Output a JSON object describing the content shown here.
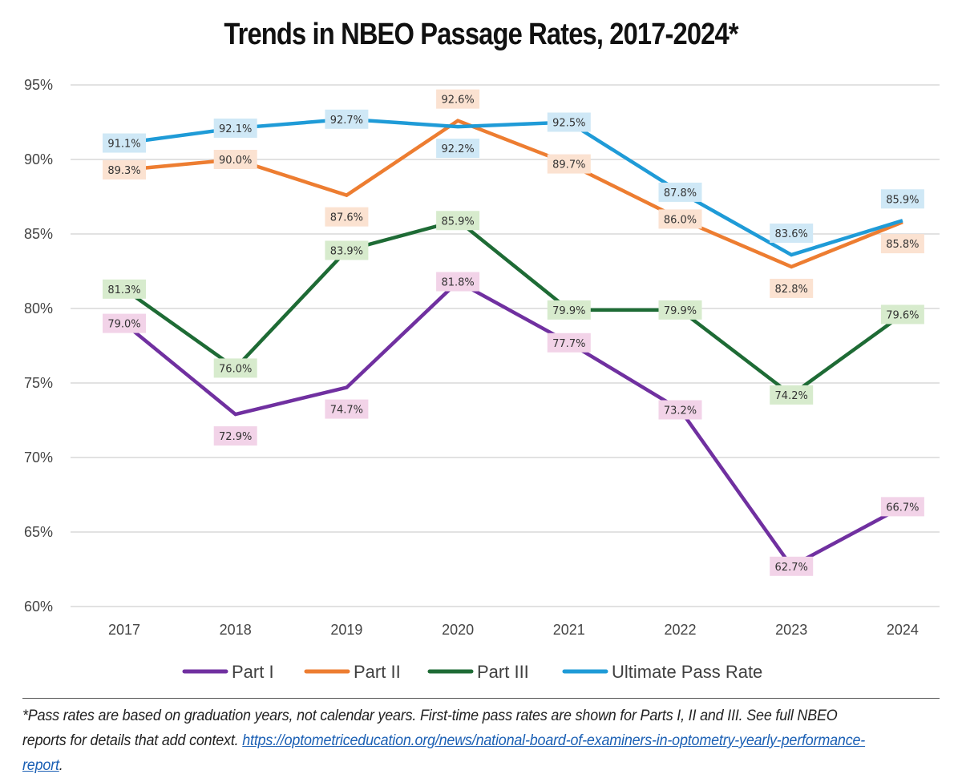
{
  "chart_data": {
    "type": "line",
    "title": "Trends in NBEO Passage Rates, 2017-2024*",
    "categories": [
      "2017",
      "2018",
      "2019",
      "2020",
      "2021",
      "2022",
      "2023",
      "2024"
    ],
    "y_ticks": [
      "95%",
      "90%",
      "85%",
      "80%",
      "75%",
      "70%",
      "65%",
      "60%"
    ],
    "ylim": [
      60,
      95
    ],
    "grid": true,
    "legend_position": "bottom",
    "series": [
      {
        "name": "Part I",
        "color": "#7030a0",
        "label_bg": "#f2d3e8",
        "values": [
          79.0,
          72.9,
          74.7,
          81.8,
          77.7,
          73.2,
          62.7,
          66.7
        ],
        "labels": [
          "79.0%",
          "72.9%",
          "74.7%",
          "81.8%",
          "77.7%",
          "73.2%",
          "62.7%",
          "66.7%"
        ]
      },
      {
        "name": "Part II",
        "color": "#ed7d31",
        "label_bg": "#fbe2d1",
        "values": [
          89.3,
          90.0,
          87.6,
          92.6,
          89.7,
          86.0,
          82.8,
          85.8
        ],
        "labels": [
          "89.3%",
          "90.0%",
          "87.6%",
          "92.6%",
          "89.7%",
          "86.0%",
          "82.8%",
          "85.8%"
        ]
      },
      {
        "name": "Part III",
        "color": "#1e6b35",
        "label_bg": "#d7ebcd",
        "values": [
          81.3,
          76.0,
          83.9,
          85.9,
          79.9,
          79.9,
          74.2,
          79.6
        ],
        "labels": [
          "81.3%",
          "76.0%",
          "83.9%",
          "85.9%",
          "79.9%",
          "79.9%",
          "74.2%",
          "79.6%"
        ]
      },
      {
        "name": "Ultimate Pass Rate",
        "color": "#1f9bd7",
        "label_bg": "#cfe8f6",
        "values": [
          91.1,
          92.1,
          92.7,
          92.2,
          92.5,
          87.8,
          83.6,
          85.9
        ],
        "labels": [
          "91.1%",
          "92.1%",
          "92.7%",
          "92.2%",
          "92.5%",
          "87.8%",
          "83.6%",
          "85.9%"
        ]
      }
    ]
  },
  "footnote": {
    "text": "*Pass rates are based on graduation years, not calendar years. First-time pass rates are shown for Parts I, II and III. See full NBEO reports for details that add context. ",
    "link_text": "https://optometriceducation.org/news/national-board-of-examiners-in-optometry-yearly-performance-report",
    "trailing": "."
  }
}
